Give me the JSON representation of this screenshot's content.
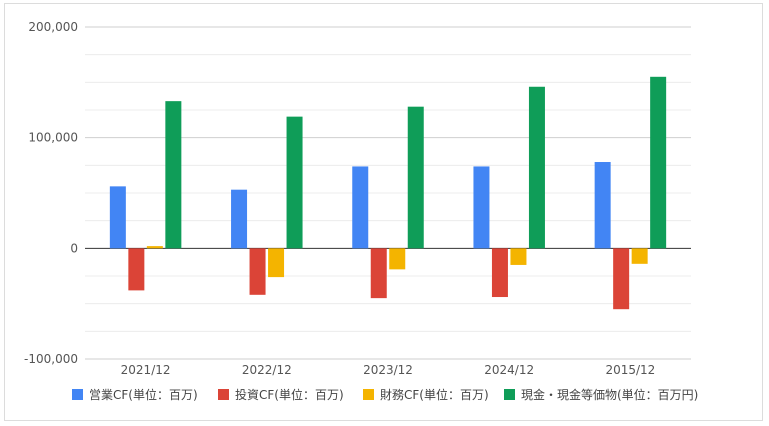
{
  "chart_data": {
    "type": "bar",
    "categories": [
      "2021/12",
      "2022/12",
      "2023/12",
      "2024/12",
      "2015/12"
    ],
    "series": [
      {
        "name": "営業CF(単位：百万)",
        "color": "#4285F4",
        "values": [
          56000,
          53000,
          74000,
          74000,
          78000
        ]
      },
      {
        "name": "投資CF(単位：百万)",
        "color": "#DB4437",
        "values": [
          -38000,
          -42000,
          -45000,
          -44000,
          -55000
        ]
      },
      {
        "name": "財務CF(単位：百万)",
        "color": "#F4B400",
        "values": [
          2000,
          -26000,
          -19000,
          -15000,
          -14000
        ]
      },
      {
        "name": "現金・現金等価物(単位：百万円)",
        "color": "#0F9D58",
        "values": [
          133000,
          119000,
          128000,
          146000,
          155000
        ]
      }
    ],
    "y_ticks": [
      "200,000",
      "100,000",
      "0",
      "-100,000"
    ],
    "y_tick_values": [
      200000,
      100000,
      0,
      -100000
    ],
    "ylim": [
      -100000,
      200000
    ],
    "grid": true,
    "minor_grid_step": 25000,
    "legend_position": "bottom"
  }
}
